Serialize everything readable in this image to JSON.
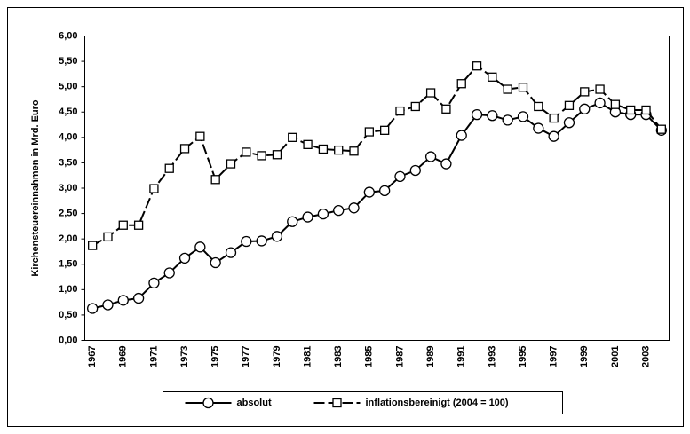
{
  "chart_data": {
    "type": "line",
    "y_label": "Kirchensteuereinnahmen in Mrd. Euro",
    "categories": [
      "1967",
      null,
      "1969",
      null,
      "1971",
      null,
      "1973",
      null,
      "1975",
      null,
      "1977",
      null,
      "1979",
      null,
      "1981",
      null,
      "1983",
      null,
      "1985",
      null,
      "1987",
      null,
      "1989",
      null,
      "1991",
      null,
      "1993",
      null,
      "1995",
      null,
      "1997",
      null,
      "1999",
      null,
      "2001",
      null,
      "2003",
      null
    ],
    "series": [
      {
        "name": "absolut",
        "color": "#000000",
        "marker": "circle",
        "line_style": "solid",
        "values": [
          0.63,
          0.7,
          0.79,
          0.83,
          1.13,
          1.33,
          1.62,
          1.84,
          1.53,
          1.73,
          1.95,
          1.96,
          2.05,
          2.34,
          2.43,
          2.49,
          2.56,
          2.61,
          2.92,
          2.95,
          3.23,
          3.35,
          3.62,
          3.48,
          4.04,
          4.45,
          4.43,
          4.34,
          4.41,
          4.18,
          4.02,
          4.29,
          4.56,
          4.68,
          4.5,
          4.45,
          4.45,
          4.14
        ]
      },
      {
        "name": "inflationsbereinigt (2004 = 100)",
        "color": "#000000",
        "marker": "square",
        "line_style": "dashed",
        "values": [
          1.87,
          2.04,
          2.27,
          2.27,
          2.99,
          3.39,
          3.78,
          4.02,
          3.17,
          3.48,
          3.71,
          3.64,
          3.66,
          4.0,
          3.86,
          3.77,
          3.75,
          3.73,
          4.11,
          4.14,
          4.52,
          4.61,
          4.88,
          4.56,
          5.06,
          5.41,
          5.19,
          4.95,
          4.99,
          4.61,
          4.38,
          4.63,
          4.9,
          4.95,
          4.65,
          4.54,
          4.54,
          4.16
        ]
      }
    ],
    "ylim": [
      0,
      6
    ],
    "yticks": [
      {
        "value": 0,
        "label": "0,00"
      },
      {
        "value": 0.5,
        "label": "0,50"
      },
      {
        "value": 1,
        "label": "1,00"
      },
      {
        "value": 1.5,
        "label": "1,50"
      },
      {
        "value": 2,
        "label": "2,00"
      },
      {
        "value": 2.5,
        "label": "2,50"
      },
      {
        "value": 3,
        "label": "3,00"
      },
      {
        "value": 3.5,
        "label": "3,50"
      },
      {
        "value": 4,
        "label": "4,00"
      },
      {
        "value": 4.5,
        "label": "4,50"
      },
      {
        "value": 5,
        "label": "5,00"
      },
      {
        "value": 5.5,
        "label": "5,50"
      },
      {
        "value": 6,
        "label": "6,00"
      }
    ],
    "grid": false,
    "legend": "bottom"
  }
}
